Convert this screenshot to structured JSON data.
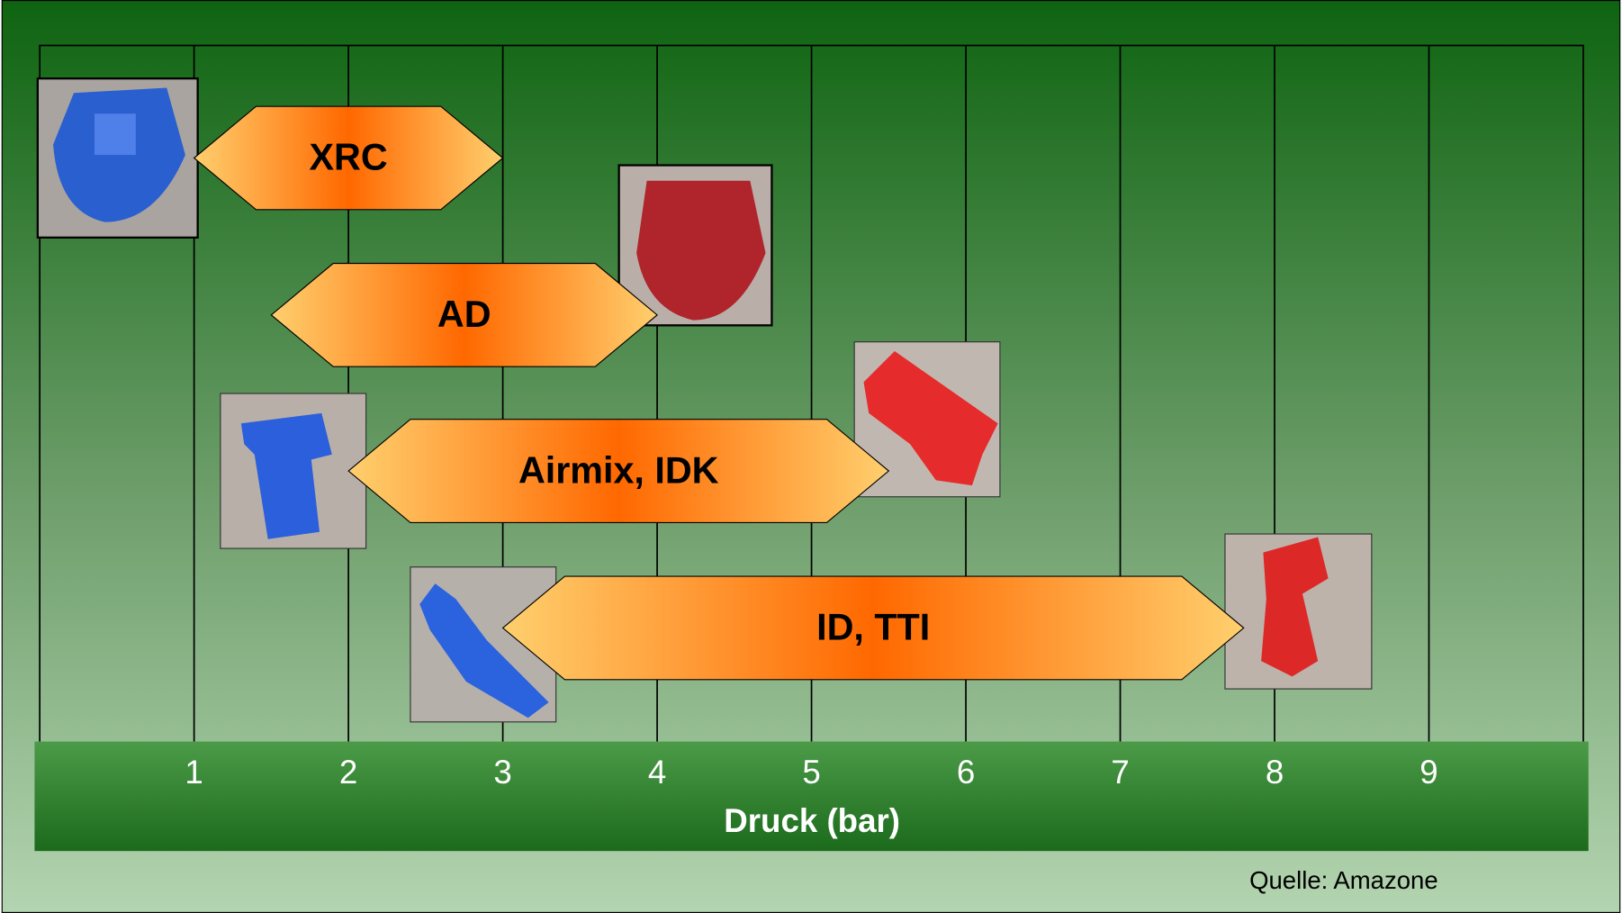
{
  "chart_data": {
    "type": "range",
    "categories": [
      "XRC",
      "AD",
      "Airmix, IDK",
      "ID, TTI"
    ],
    "low": [
      1,
      1.5,
      2,
      3
    ],
    "high": [
      3,
      4,
      5.5,
      7.8
    ],
    "xlim": [
      0,
      10
    ],
    "xticks": [
      1,
      2,
      3,
      4,
      5,
      6,
      7,
      8,
      9
    ],
    "x_label": "Druck (bar)",
    "source": "Quelle: Amazone",
    "grid": true
  }
}
